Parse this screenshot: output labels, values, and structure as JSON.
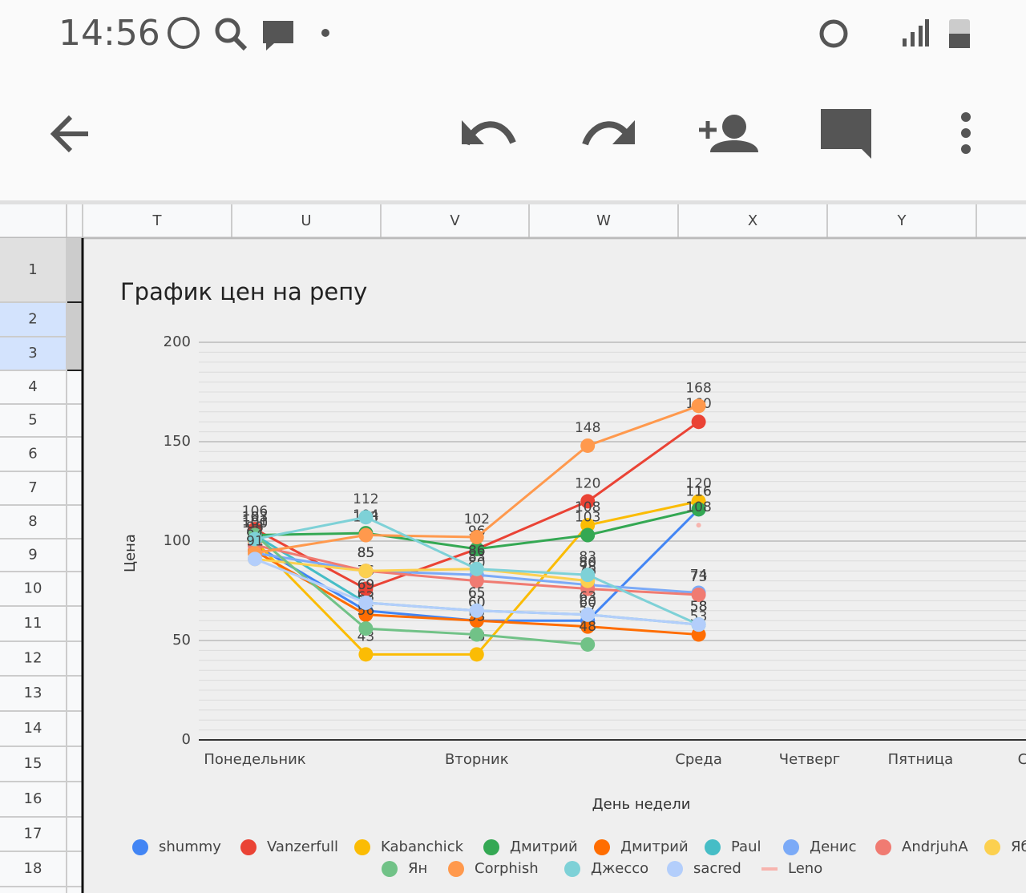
{
  "status_bar": {
    "time": "14:56"
  },
  "sheet": {
    "columns": [
      "T",
      "U",
      "V",
      "W",
      "X",
      "Y"
    ],
    "rows": [
      "1",
      "2",
      "3",
      "4",
      "5",
      "6",
      "7",
      "8",
      "9",
      "10",
      "11",
      "12",
      "13",
      "14",
      "15",
      "16",
      "17",
      "18"
    ]
  },
  "chart_data": {
    "type": "line",
    "title": "График цен на репу",
    "x_label": "День недели",
    "y_label": "Цена",
    "categories": [
      "Понедельник",
      null,
      "Вторник",
      null,
      "Среда",
      "Четверг",
      "Пятница",
      "Суб"
    ],
    "ylim": [
      0,
      200
    ],
    "yticks": [
      0,
      50,
      100,
      150,
      200
    ],
    "grid": true,
    "yminor_step": 5,
    "legend": "bottom",
    "series": [
      {
        "name": "shummy",
        "color": "#4285f4",
        "values": [
          98,
          65,
          60,
          60,
          116,
          null,
          null,
          null
        ]
      },
      {
        "name": "Vanzerfull",
        "color": "#ea4335",
        "values": [
          106,
          76,
          96,
          120,
          160,
          null,
          null,
          null
        ]
      },
      {
        "name": "Kabanchick",
        "color": "#fbbc04",
        "values": [
          100,
          43,
          43,
          108,
          120,
          null,
          null,
          null
        ]
      },
      {
        "name": "Дмитрий",
        "color": "#34a853",
        "values": [
          103,
          104,
          96,
          103,
          116,
          null,
          null,
          null
        ]
      },
      {
        "name": "Дмитрий",
        "color": "#ff6d01",
        "values": [
          95,
          63,
          60,
          57,
          53,
          null,
          null,
          null
        ]
      },
      {
        "name": "Paul",
        "color": "#46bdc6",
        "values": [
          103,
          69,
          65,
          63,
          58,
          null,
          null,
          null
        ]
      },
      {
        "name": "Денис",
        "color": "#7baaf7",
        "values": [
          94,
          85,
          83,
          78,
          74,
          null,
          null,
          null
        ]
      },
      {
        "name": "AndrjuhA",
        "color": "#f07b72",
        "values": [
          98,
          85,
          80,
          76,
          73,
          null,
          null,
          null
        ]
      },
      {
        "name": "Яб",
        "color": "#fcd04f",
        "values": [
          91,
          85,
          86,
          80,
          null,
          null,
          null,
          null
        ]
      },
      {
        "name": "Ян",
        "color": "#71c287",
        "values": [
          103,
          56,
          53,
          48,
          null,
          null,
          null,
          null
        ]
      },
      {
        "name": "Corphish",
        "color": "#ff994d",
        "values": [
          94,
          103,
          102,
          148,
          168,
          null,
          null,
          null
        ]
      },
      {
        "name": "Джессо",
        "color": "#7ed1d7",
        "values": [
          101,
          112,
          86,
          83,
          58,
          null,
          null,
          null
        ]
      },
      {
        "name": "sacred",
        "color": "#b3cefb",
        "values": [
          91,
          69,
          65,
          63,
          58,
          null,
          null,
          null
        ]
      },
      {
        "name": "Leno",
        "color": "#f7b4ae",
        "values": [
          null,
          null,
          null,
          null,
          108,
          null,
          null,
          null
        ]
      }
    ]
  }
}
